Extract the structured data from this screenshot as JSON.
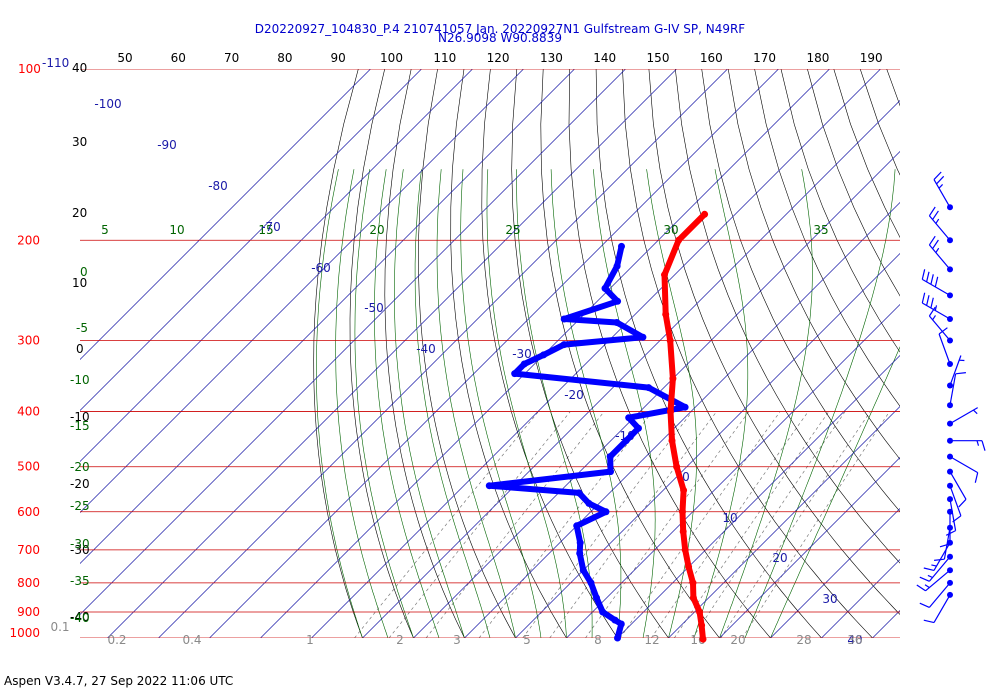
{
  "footer": "Aspen V3.4.7, 27 Sep 2022  11:06 UTC",
  "chart_data": {
    "type": "skew-t",
    "title": "D20220927_104830_P.4 210741057 Jan. 20220927N1 Gulfstream G-IV SP, N49RF",
    "subtitle": "N26.9098 W90.8839",
    "pressure_levels": [
      100,
      200,
      300,
      400,
      500,
      600,
      700,
      800,
      900,
      1000
    ],
    "pressure_label_top_extra": "-110",
    "pressure_range": [
      100,
      1000
    ],
    "top_tick_values": [
      50,
      60,
      70,
      80,
      90,
      100,
      110,
      120,
      130,
      140,
      150,
      160,
      170,
      180,
      190
    ],
    "left_temp_labels": [
      "40",
      "30",
      "20",
      "10",
      "0",
      "-10",
      "-20",
      "-30",
      "-40"
    ],
    "left_green_labels": [
      "0",
      "-5",
      "-10",
      "-15",
      "-20",
      "-25",
      "-30",
      "-35",
      "-40"
    ],
    "theta_w_labels": [
      "5",
      "10",
      "15",
      "20",
      "25",
      "30",
      "35"
    ],
    "isotherm_labels": [
      "-100",
      "-90",
      "-80",
      "-70",
      "-60",
      "-50",
      "-40",
      "-30",
      "-20",
      "-10",
      "0",
      "10",
      "20",
      "30",
      "40"
    ],
    "mixing_ratio_labels": [
      "0.1",
      "0.2",
      "0.4",
      "1",
      "2",
      "3",
      "5",
      "8",
      "12",
      "16",
      "20",
      "28",
      "36"
    ],
    "temperature_profile": [
      [
        180,
        -56
      ],
      [
        200,
        -56
      ],
      [
        230,
        -52
      ],
      [
        270,
        -44
      ],
      [
        300,
        -38
      ],
      [
        350,
        -30
      ],
      [
        400,
        -24
      ],
      [
        450,
        -18
      ],
      [
        500,
        -12
      ],
      [
        550,
        -6
      ],
      [
        600,
        -2
      ],
      [
        650,
        2
      ],
      [
        700,
        6
      ],
      [
        750,
        10
      ],
      [
        800,
        14
      ],
      [
        850,
        17
      ],
      [
        900,
        21
      ],
      [
        950,
        24
      ],
      [
        1005,
        27
      ]
    ],
    "dewpoint_profile": [
      [
        205,
        -66
      ],
      [
        222,
        -63
      ],
      [
        243,
        -61
      ],
      [
        256,
        -56
      ],
      [
        275,
        -63
      ],
      [
        279,
        -52
      ],
      [
        296,
        -44
      ],
      [
        305,
        -58
      ],
      [
        318,
        -60
      ],
      [
        330,
        -62
      ],
      [
        343,
        -62
      ],
      [
        363,
        -33
      ],
      [
        393,
        -22
      ],
      [
        410,
        -31
      ],
      [
        428,
        -27
      ],
      [
        450,
        -27
      ],
      [
        480,
        -27
      ],
      [
        510,
        -24
      ],
      [
        540,
        -45
      ],
      [
        556,
        -26
      ],
      [
        580,
        -22
      ],
      [
        600,
        -17
      ],
      [
        635,
        -20
      ],
      [
        680,
        -16
      ],
      [
        710,
        -14
      ],
      [
        760,
        -10
      ],
      [
        800,
        -6
      ],
      [
        850,
        -2
      ],
      [
        900,
        2
      ],
      [
        930,
        6
      ],
      [
        945,
        8
      ],
      [
        1000,
        10
      ]
    ],
    "wind_barbs": [
      {
        "pressure": 175,
        "dir": 330,
        "speed": 25
      },
      {
        "pressure": 200,
        "dir": 320,
        "speed": 25
      },
      {
        "pressure": 225,
        "dir": 320,
        "speed": 25
      },
      {
        "pressure": 250,
        "dir": 300,
        "speed": 40
      },
      {
        "pressure": 275,
        "dir": 300,
        "speed": 35
      },
      {
        "pressure": 300,
        "dir": 320,
        "speed": 15
      },
      {
        "pressure": 330,
        "dir": 340,
        "speed": 10
      },
      {
        "pressure": 360,
        "dir": 20,
        "speed": 5
      },
      {
        "pressure": 390,
        "dir": 10,
        "speed": 10
      },
      {
        "pressure": 420,
        "dir": 60,
        "speed": 5
      },
      {
        "pressure": 450,
        "dir": 90,
        "speed": 15
      },
      {
        "pressure": 480,
        "dir": 120,
        "speed": 10
      },
      {
        "pressure": 510,
        "dir": 150,
        "speed": 10
      },
      {
        "pressure": 540,
        "dir": 160,
        "speed": 10
      },
      {
        "pressure": 570,
        "dir": 170,
        "speed": 10
      },
      {
        "pressure": 600,
        "dir": 180,
        "speed": 10
      },
      {
        "pressure": 640,
        "dir": 190,
        "speed": 10
      },
      {
        "pressure": 680,
        "dir": 210,
        "speed": 15
      },
      {
        "pressure": 720,
        "dir": 220,
        "speed": 15
      },
      {
        "pressure": 760,
        "dir": 230,
        "speed": 15
      },
      {
        "pressure": 800,
        "dir": 220,
        "speed": 10
      },
      {
        "pressure": 840,
        "dir": 210,
        "speed": 10
      }
    ],
    "colors": {
      "temperature": "#ff0000",
      "dewpoint": "#0000ff",
      "isobar": "#cc0000",
      "isotherm": "#1a1aa8",
      "dry_adiabat": "#000000",
      "moist_adiabat": "#006400",
      "mixing_ratio": "#7a7a7a",
      "title": "#0000cc"
    }
  }
}
